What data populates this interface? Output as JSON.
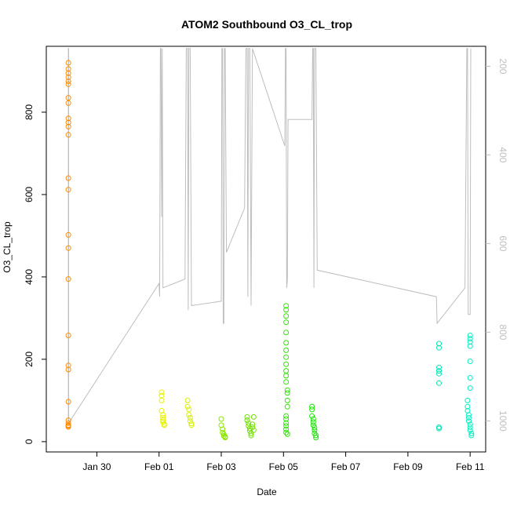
{
  "chart_data": {
    "type": "scatter",
    "title": "ATOM2 Southbound O3_CL_trop",
    "xlabel": "Date",
    "ylabel": "O3_CL_trop",
    "secondary_ylabel": "",
    "x_ticks": [
      "Jan 30",
      "Feb 01",
      "Feb 03",
      "Feb 05",
      "Feb 07",
      "Feb 09",
      "Feb 11"
    ],
    "y_ticks": [
      "0",
      "200",
      "400",
      "600",
      "800"
    ],
    "y2_ticks": [
      "200",
      "400",
      "600",
      "800",
      "1000"
    ],
    "xlim": [
      "2017-01-28 09:00",
      "2017-02-11 12:00"
    ],
    "ylim": [
      -25,
      960
    ],
    "y2lim": [
      1070,
      155
    ],
    "y2_reversed": true,
    "colors": {
      "axis": "#000000",
      "altitude_line": "#bebebe",
      "secondary_axis": "#bebebe"
    },
    "series": [
      {
        "date": "2017-01-29",
        "color": "#ff8c00",
        "points": [
          {
            "t": "2017-01-29 02:00",
            "y": 920
          },
          {
            "t": "2017-01-29 02:00",
            "y": 905
          },
          {
            "t": "2017-01-29 02:00",
            "y": 895
          },
          {
            "t": "2017-01-29 02:00",
            "y": 885
          },
          {
            "t": "2017-01-29 02:00",
            "y": 875
          },
          {
            "t": "2017-01-29 02:00",
            "y": 868
          },
          {
            "t": "2017-01-29 02:00",
            "y": 835
          },
          {
            "t": "2017-01-29 02:00",
            "y": 822
          },
          {
            "t": "2017-01-29 02:00",
            "y": 785
          },
          {
            "t": "2017-01-29 02:00",
            "y": 775
          },
          {
            "t": "2017-01-29 02:00",
            "y": 765
          },
          {
            "t": "2017-01-29 02:00",
            "y": 745
          },
          {
            "t": "2017-01-29 02:00",
            "y": 640
          },
          {
            "t": "2017-01-29 02:00",
            "y": 612
          },
          {
            "t": "2017-01-29 02:00",
            "y": 502
          },
          {
            "t": "2017-01-29 02:00",
            "y": 470
          },
          {
            "t": "2017-01-29 02:00",
            "y": 395
          },
          {
            "t": "2017-01-29 02:00",
            "y": 258
          },
          {
            "t": "2017-01-29 02:00",
            "y": 185
          },
          {
            "t": "2017-01-29 02:00",
            "y": 175
          },
          {
            "t": "2017-01-29 02:00",
            "y": 97
          },
          {
            "t": "2017-01-29 02:00",
            "y": 52
          },
          {
            "t": "2017-01-29 02:00",
            "y": 45
          },
          {
            "t": "2017-01-29 02:00",
            "y": 40
          },
          {
            "t": "2017-01-29 02:00",
            "y": 38
          },
          {
            "t": "2017-01-29 02:00",
            "y": 36
          }
        ]
      },
      {
        "date": "2017-02-01",
        "color": "#e6f000",
        "points": [
          {
            "t": "2017-02-01 02:00",
            "y": 120
          },
          {
            "t": "2017-02-01 02:00",
            "y": 112
          },
          {
            "t": "2017-02-01 02:00",
            "y": 100
          },
          {
            "t": "2017-02-01 02:00",
            "y": 75
          },
          {
            "t": "2017-02-01 03:00",
            "y": 65
          },
          {
            "t": "2017-02-01 03:00",
            "y": 58
          },
          {
            "t": "2017-02-01 03:00",
            "y": 52
          },
          {
            "t": "2017-02-01 03:00",
            "y": 47
          },
          {
            "t": "2017-02-01 04:00",
            "y": 43
          },
          {
            "t": "2017-02-01 04:00",
            "y": 40
          }
        ]
      },
      {
        "date": "2017-02-01b",
        "color": "#d8f000",
        "points": [
          {
            "t": "2017-02-01 22:00",
            "y": 100
          },
          {
            "t": "2017-02-01 22:00",
            "y": 85
          },
          {
            "t": "2017-02-01 23:00",
            "y": 78
          },
          {
            "t": "2017-02-01 23:00",
            "y": 65
          },
          {
            "t": "2017-02-02 00:00",
            "y": 58
          },
          {
            "t": "2017-02-02 00:00",
            "y": 50
          },
          {
            "t": "2017-02-02 01:00",
            "y": 44
          },
          {
            "t": "2017-02-02 01:00",
            "y": 40
          }
        ]
      },
      {
        "date": "2017-02-03",
        "color": "#8ae600",
        "points": [
          {
            "t": "2017-02-03 00:00",
            "y": 55
          },
          {
            "t": "2017-02-03 00:00",
            "y": 40
          },
          {
            "t": "2017-02-03 01:00",
            "y": 30
          },
          {
            "t": "2017-02-03 01:00",
            "y": 22
          },
          {
            "t": "2017-02-03 02:00",
            "y": 18
          },
          {
            "t": "2017-02-03 02:00",
            "y": 14
          },
          {
            "t": "2017-02-03 03:00",
            "y": 12
          },
          {
            "t": "2017-02-03 03:00",
            "y": 10
          }
        ]
      },
      {
        "date": "2017-02-04",
        "color": "#72e000",
        "points": [
          {
            "t": "2017-02-03 20:00",
            "y": 60
          },
          {
            "t": "2017-02-03 20:00",
            "y": 52
          },
          {
            "t": "2017-02-03 21:00",
            "y": 45
          },
          {
            "t": "2017-02-03 21:00",
            "y": 38
          },
          {
            "t": "2017-02-03 22:00",
            "y": 32
          },
          {
            "t": "2017-02-03 22:00",
            "y": 26
          },
          {
            "t": "2017-02-03 23:00",
            "y": 20
          },
          {
            "t": "2017-02-03 23:00",
            "y": 15
          },
          {
            "t": "2017-02-04 00:00",
            "y": 42
          },
          {
            "t": "2017-02-04 00:00",
            "y": 35
          },
          {
            "t": "2017-02-04 01:00",
            "y": 60
          },
          {
            "t": "2017-02-04 01:00",
            "y": 28
          }
        ]
      },
      {
        "date": "2017-02-05",
        "color": "#2ee600",
        "points": [
          {
            "t": "2017-02-05 02:00",
            "y": 330
          },
          {
            "t": "2017-02-05 02:00",
            "y": 320
          },
          {
            "t": "2017-02-05 02:00",
            "y": 305
          },
          {
            "t": "2017-02-05 02:00",
            "y": 290
          },
          {
            "t": "2017-02-05 02:00",
            "y": 265
          },
          {
            "t": "2017-02-05 02:00",
            "y": 240
          },
          {
            "t": "2017-02-05 02:00",
            "y": 222
          },
          {
            "t": "2017-02-05 02:00",
            "y": 205
          },
          {
            "t": "2017-02-05 02:00",
            "y": 188
          },
          {
            "t": "2017-02-05 02:00",
            "y": 172
          },
          {
            "t": "2017-02-05 02:00",
            "y": 160
          },
          {
            "t": "2017-02-05 02:00",
            "y": 145
          },
          {
            "t": "2017-02-05 03:00",
            "y": 125
          },
          {
            "t": "2017-02-05 03:00",
            "y": 118
          },
          {
            "t": "2017-02-05 03:00",
            "y": 100
          },
          {
            "t": "2017-02-05 03:00",
            "y": 85
          },
          {
            "t": "2017-02-05 02:00",
            "y": 62
          },
          {
            "t": "2017-02-05 02:00",
            "y": 55
          },
          {
            "t": "2017-02-05 02:00",
            "y": 45
          },
          {
            "t": "2017-02-05 02:00",
            "y": 38
          },
          {
            "t": "2017-02-05 02:00",
            "y": 30
          },
          {
            "t": "2017-02-05 02:00",
            "y": 22
          },
          {
            "t": "2017-02-05 03:00",
            "y": 18
          }
        ]
      },
      {
        "date": "2017-02-06",
        "color": "#18e600",
        "points": [
          {
            "t": "2017-02-05 22:00",
            "y": 85
          },
          {
            "t": "2017-02-05 22:00",
            "y": 78
          },
          {
            "t": "2017-02-05 22:00",
            "y": 62
          },
          {
            "t": "2017-02-05 23:00",
            "y": 55
          },
          {
            "t": "2017-02-05 23:00",
            "y": 48
          },
          {
            "t": "2017-02-05 23:00",
            "y": 40
          },
          {
            "t": "2017-02-06 00:00",
            "y": 34
          },
          {
            "t": "2017-02-06 00:00",
            "y": 28
          },
          {
            "t": "2017-02-06 00:00",
            "y": 20
          },
          {
            "t": "2017-02-06 01:00",
            "y": 15
          },
          {
            "t": "2017-02-06 01:00",
            "y": 10
          }
        ]
      },
      {
        "date": "2017-02-10",
        "color": "#00e6b0",
        "points": [
          {
            "t": "2017-02-10 00:00",
            "y": 238
          },
          {
            "t": "2017-02-10 00:00",
            "y": 228
          },
          {
            "t": "2017-02-10 00:00",
            "y": 180
          },
          {
            "t": "2017-02-10 00:00",
            "y": 172
          },
          {
            "t": "2017-02-10 00:00",
            "y": 165
          },
          {
            "t": "2017-02-10 00:00",
            "y": 142
          },
          {
            "t": "2017-02-10 00:00",
            "y": 35
          },
          {
            "t": "2017-02-10 00:00",
            "y": 32
          }
        ]
      },
      {
        "date": "2017-02-11",
        "color": "#00f0c0",
        "points": [
          {
            "t": "2017-02-11 00:00",
            "y": 258
          },
          {
            "t": "2017-02-11 00:00",
            "y": 250
          },
          {
            "t": "2017-02-11 00:00",
            "y": 242
          },
          {
            "t": "2017-02-11 00:00",
            "y": 232
          },
          {
            "t": "2017-02-11 00:00",
            "y": 195
          },
          {
            "t": "2017-02-11 00:00",
            "y": 155
          },
          {
            "t": "2017-02-11 00:00",
            "y": 130
          },
          {
            "t": "2017-02-10 22:00",
            "y": 100
          },
          {
            "t": "2017-02-10 22:00",
            "y": 85
          },
          {
            "t": "2017-02-10 22:00",
            "y": 75
          },
          {
            "t": "2017-02-10 23:00",
            "y": 65
          },
          {
            "t": "2017-02-10 23:00",
            "y": 58
          },
          {
            "t": "2017-02-10 23:00",
            "y": 50
          },
          {
            "t": "2017-02-11 00:00",
            "y": 42
          },
          {
            "t": "2017-02-11 00:00",
            "y": 35
          },
          {
            "t": "2017-02-11 00:00",
            "y": 28
          },
          {
            "t": "2017-02-11 01:00",
            "y": 20
          },
          {
            "t": "2017-02-11 01:00",
            "y": 15
          }
        ]
      }
    ],
    "altitude_profile_y2": [
      [
        "2017-01-29 02:00",
        1000
      ],
      [
        "2017-01-29 02:00",
        160
      ],
      [
        "2017-01-29 02:15",
        160
      ],
      [
        "2017-01-29 02:15",
        1005
      ],
      [
        "2017-02-01 00:00",
        690
      ],
      [
        "2017-02-01 00:30",
        720
      ],
      [
        "2017-02-01 01:00",
        160
      ],
      [
        "2017-02-01 01:30",
        160
      ],
      [
        "2017-02-01 02:00",
        540
      ],
      [
        "2017-02-01 02:30",
        160
      ],
      [
        "2017-02-01 03:00",
        700
      ],
      [
        "2017-02-01 20:00",
        680
      ],
      [
        "2017-02-01 21:00",
        160
      ],
      [
        "2017-02-01 22:00",
        160
      ],
      [
        "2017-02-01 22:30",
        750
      ],
      [
        "2017-02-01 23:00",
        160
      ],
      [
        "2017-02-02 00:00",
        160
      ],
      [
        "2017-02-02 01:00",
        740
      ],
      [
        "2017-02-03 00:00",
        730
      ],
      [
        "2017-02-03 00:30",
        160
      ],
      [
        "2017-02-03 01:00",
        160
      ],
      [
        "2017-02-03 01:30",
        780
      ],
      [
        "2017-02-03 02:00",
        780
      ],
      [
        "2017-02-03 02:30",
        160
      ],
      [
        "2017-02-03 03:00",
        160
      ],
      [
        "2017-02-03 04:00",
        620
      ],
      [
        "2017-02-03 18:00",
        520
      ],
      [
        "2017-02-03 19:00",
        160
      ],
      [
        "2017-02-03 20:00",
        160
      ],
      [
        "2017-02-03 20:30",
        720
      ],
      [
        "2017-02-03 21:00",
        160
      ],
      [
        "2017-02-03 22:00",
        160
      ],
      [
        "2017-02-03 23:00",
        740
      ],
      [
        "2017-02-04 00:00",
        160
      ],
      [
        "2017-02-05 01:00",
        380
      ],
      [
        "2017-02-05 01:30",
        160
      ],
      [
        "2017-02-05 02:00",
        160
      ],
      [
        "2017-02-05 02:30",
        700
      ],
      [
        "2017-02-05 03:00",
        680
      ],
      [
        "2017-02-05 03:30",
        320
      ],
      [
        "2017-02-05 22:00",
        320
      ],
      [
        "2017-02-05 22:30",
        160
      ],
      [
        "2017-02-05 23:00",
        160
      ],
      [
        "2017-02-05 23:30",
        700
      ],
      [
        "2017-02-06 00:00",
        160
      ],
      [
        "2017-02-06 01:00",
        160
      ],
      [
        "2017-02-06 02:00",
        660
      ],
      [
        "2017-02-09 22:00",
        720
      ],
      [
        "2017-02-09 22:30",
        780
      ],
      [
        "2017-02-10 20:00",
        700
      ],
      [
        "2017-02-10 21:00",
        340
      ],
      [
        "2017-02-10 21:30",
        160
      ],
      [
        "2017-02-10 22:00",
        160
      ],
      [
        "2017-02-10 22:30",
        760
      ],
      [
        "2017-02-11 00:00",
        760
      ],
      [
        "2017-02-11 00:30",
        160
      ]
    ]
  }
}
